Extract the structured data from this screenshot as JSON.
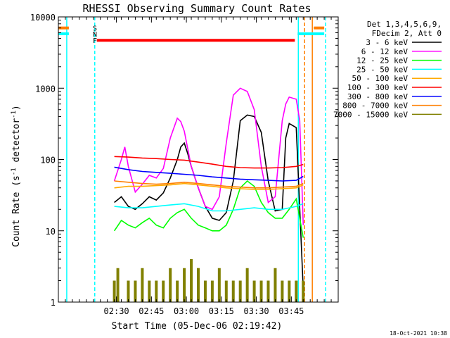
{
  "chart_data": {
    "type": "line",
    "title": "RHESSI Observing Summary Count Rates",
    "xlabel": "Start Time (05-Dec-06 02:19:42)",
    "ylabel_main": "Count Rate (s",
    "ylabel_sup1": "-1",
    "ylabel_mid": " detector",
    "ylabel_sup2": "-1",
    "ylabel_end": ")",
    "yscale": "log",
    "ylim": [
      1,
      10000
    ],
    "xlim_minutes": [
      0,
      40
    ],
    "y_ticks": [
      {
        "value": 1,
        "label": "1"
      },
      {
        "value": 10,
        "label": "10"
      },
      {
        "value": 100,
        "label": "100"
      },
      {
        "value": 1000,
        "label": "1000"
      },
      {
        "value": 10000,
        "label": "10000"
      }
    ],
    "x_ticks": [
      {
        "value": 8.3,
        "label": "02:30"
      },
      {
        "value": 13.3,
        "label": "02:45"
      },
      {
        "value": 18.3,
        "label": "03:00"
      },
      {
        "value": 23.3,
        "label": "03:15"
      },
      {
        "value": 28.3,
        "label": "03:30"
      },
      {
        "value": 33.3,
        "label": "03:45"
      }
    ],
    "legend_header": [
      "Det 1,3,4,5,6,9,",
      "FDecim 2, Att 0"
    ],
    "series": [
      {
        "name": "3 - 6 keV",
        "color": "#000000",
        "x": [
          8.0,
          9.0,
          10.0,
          11.0,
          12.0,
          13.0,
          14.0,
          15.0,
          16.0,
          17.0,
          17.5,
          18.0,
          18.5,
          19.0,
          20.0,
          21.0,
          22.0,
          23.0,
          24.0,
          25.0,
          26.0,
          27.0,
          28.0,
          29.0,
          30.0,
          31.0,
          32.0,
          32.5,
          33.0,
          34.0,
          35.0
        ],
        "values": [
          25,
          30,
          22,
          20,
          24,
          30,
          27,
          34,
          55,
          100,
          150,
          170,
          120,
          80,
          40,
          22,
          15,
          14,
          18,
          50,
          350,
          420,
          400,
          240,
          50,
          19,
          20,
          200,
          320,
          280,
          1.5
        ]
      },
      {
        "name": "6 - 12 keV",
        "color": "#ff00ff",
        "x": [
          8.0,
          9.0,
          9.5,
          10.0,
          11.0,
          12.0,
          13.0,
          14.0,
          15.0,
          16.0,
          17.0,
          17.5,
          18.0,
          18.5,
          19.0,
          20.0,
          21.0,
          22.0,
          23.0,
          24.0,
          25.0,
          26.0,
          27.0,
          28.0,
          29.0,
          30.0,
          31.0,
          32.0,
          32.5,
          33.0,
          34.0,
          34.5,
          35.0
        ],
        "values": [
          50,
          100,
          150,
          80,
          35,
          45,
          60,
          55,
          75,
          200,
          380,
          340,
          250,
          140,
          80,
          40,
          22,
          20,
          30,
          170,
          800,
          1000,
          900,
          500,
          80,
          25,
          30,
          350,
          600,
          750,
          700,
          350,
          12
        ]
      },
      {
        "name": "12 - 25 keV",
        "color": "#00ff00",
        "x": [
          8.0,
          9.0,
          10.0,
          11.0,
          12.0,
          13.0,
          14.0,
          15.0,
          16.0,
          17.0,
          18.0,
          19.0,
          20.0,
          21.0,
          22.0,
          23.0,
          24.0,
          25.0,
          26.0,
          27.0,
          28.0,
          29.0,
          30.0,
          31.0,
          32.0,
          33.0,
          34.0,
          35.0
        ],
        "values": [
          10,
          14,
          12,
          11,
          13,
          15,
          12,
          11,
          15,
          18,
          20,
          15,
          12,
          11,
          10,
          10,
          12,
          20,
          40,
          50,
          42,
          25,
          18,
          15,
          15,
          20,
          28,
          8
        ]
      },
      {
        "name": "25 - 50 keV",
        "color": "#00ffff",
        "x": [
          8.0,
          10.0,
          12.0,
          14.0,
          16.0,
          18.0,
          20.0,
          22.0,
          24.0,
          26.0,
          28.0,
          30.0,
          32.0,
          34.0,
          35.0
        ],
        "values": [
          22,
          21,
          21,
          22,
          23,
          24,
          22,
          19,
          19,
          20,
          21,
          20,
          20,
          22,
          24
        ]
      },
      {
        "name": "50 - 100 keV",
        "color": "#ffaa00",
        "x": [
          8.0,
          10.0,
          12.0,
          14.0,
          16.0,
          18.0,
          20.0,
          22.0,
          24.0,
          26.0,
          28.0,
          30.0,
          32.0,
          34.0,
          35.0
        ],
        "values": [
          40,
          42,
          42,
          43,
          44,
          46,
          44,
          42,
          40,
          39,
          38,
          38,
          39,
          40,
          44
        ]
      },
      {
        "name": "100 - 300 keV",
        "color": "#ff0000",
        "x": [
          8.0,
          10.0,
          12.0,
          14.0,
          16.0,
          18.0,
          20.0,
          22.0,
          24.0,
          26.0,
          28.0,
          30.0,
          32.0,
          34.0,
          35.0
        ],
        "values": [
          110,
          108,
          105,
          103,
          100,
          98,
          92,
          86,
          80,
          77,
          76,
          76,
          77,
          80,
          85
        ]
      },
      {
        "name": "300 - 800 keV",
        "color": "#0000ff",
        "x": [
          8.0,
          10.0,
          12.0,
          14.0,
          16.0,
          18.0,
          20.0,
          22.0,
          24.0,
          26.0,
          28.0,
          30.0,
          32.0,
          34.0,
          35.0
        ],
        "values": [
          78,
          72,
          68,
          66,
          64,
          62,
          60,
          57,
          55,
          53,
          52,
          51,
          50,
          51,
          58
        ]
      },
      {
        "name": "800 - 7000 keV",
        "color": "#ff7f00",
        "x": [
          8.0,
          10.0,
          12.0,
          14.0,
          16.0,
          18.0,
          20.0,
          22.0,
          24.0,
          26.0,
          28.0,
          30.0,
          32.0,
          34.0,
          35.0
        ],
        "values": [
          50,
          48,
          46,
          45,
          46,
          48,
          46,
          44,
          42,
          41,
          40,
          40,
          41,
          42,
          46
        ]
      },
      {
        "name": "7000 - 15000 keV",
        "color": "#808000",
        "x": [
          8.0,
          8.5,
          10.0,
          11.0,
          12.0,
          13.0,
          14.0,
          15.0,
          16.0,
          17.0,
          18.0,
          19.0,
          20.0,
          21.0,
          22.0,
          23.0,
          24.0,
          25.0,
          26.0,
          27.0,
          28.0,
          29.0,
          30.0,
          31.0,
          32.0,
          33.0,
          34.0,
          35.0
        ],
        "values": [
          2,
          3,
          2,
          2,
          3,
          2,
          2,
          2,
          3,
          2,
          3,
          4,
          3,
          2,
          2,
          3,
          2,
          2,
          2,
          3,
          2,
          2,
          2,
          3,
          2,
          2,
          2,
          2
        ]
      }
    ],
    "annotations": [
      {
        "text": "S",
        "color": "#ff7f00"
      },
      {
        "text": "N",
        "color": "#00ffff"
      },
      {
        "text": "F",
        "color": "#ff0000"
      }
    ],
    "flag_bars": [
      {
        "name": "S",
        "color": "#ff7f00",
        "value": 7000,
        "segments": [
          [
            -3,
            1.5
          ],
          [
            36.5,
            38
          ]
        ]
      },
      {
        "name": "N",
        "color": "#00ffff",
        "value": 5800,
        "segments": [
          [
            -3,
            1.5
          ],
          [
            34.2,
            38
          ]
        ]
      },
      {
        "name": "F",
        "color": "#ff0000",
        "value": 4700,
        "segments": [
          [
            5.5,
            33.8
          ]
        ]
      }
    ],
    "vertical_markers": [
      {
        "color": "#00ffff",
        "style": "solid",
        "x": 1.2
      },
      {
        "color": "#00ffff",
        "style": "dashed",
        "x": 5.2
      },
      {
        "color": "#00ffff",
        "style": "solid",
        "x": 34.3
      },
      {
        "color": "#ff7f00",
        "style": "dashed",
        "x": 35.2
      },
      {
        "color": "#ff7f00",
        "style": "solid",
        "x": 36.3
      },
      {
        "color": "#00ffff",
        "style": "dashed",
        "x": 38.2
      }
    ],
    "footer": "18-Oct-2021 10:38"
  }
}
